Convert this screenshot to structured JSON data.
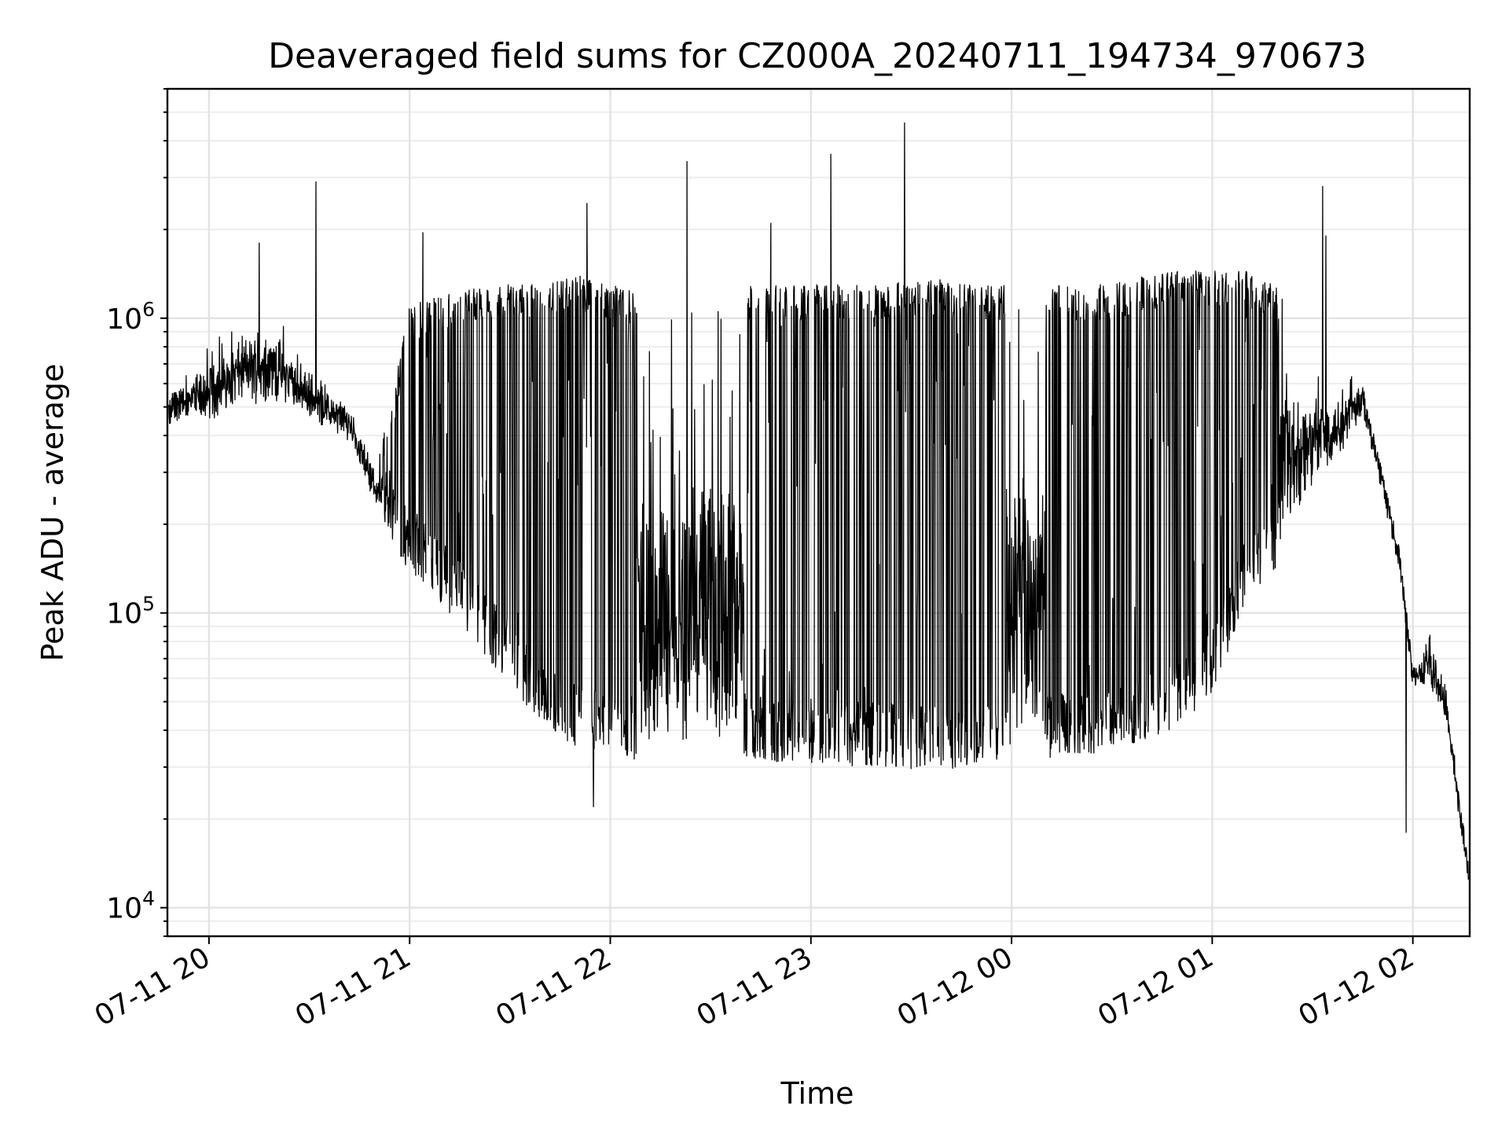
{
  "chart_data": {
    "type": "line",
    "title": "Deaveraged field sums for CZ000A_20240711_194734_970673",
    "xlabel": "Time",
    "ylabel": "Peak ADU - average",
    "y_scale": "log",
    "ylim": [
      8000,
      6000000
    ],
    "xlim": [
      "2024-07-11 19:47:34",
      "2024-07-12 02:17:00"
    ],
    "grid": true,
    "x_ticks": [
      "2024-07-11 20:00",
      "2024-07-11 21:00",
      "2024-07-11 22:00",
      "2024-07-11 23:00",
      "2024-07-12 00:00",
      "2024-07-12 01:00",
      "2024-07-12 02:00"
    ],
    "x_tick_labels": [
      "07-11 20",
      "07-11 21",
      "07-11 22",
      "07-11 23",
      "07-12 00",
      "07-12 01",
      "07-12 02"
    ],
    "y_ticks": [
      {
        "value": 10000,
        "base": "10",
        "exp": "4"
      },
      {
        "value": 100000,
        "base": "10",
        "exp": "5"
      },
      {
        "value": 1000000,
        "base": "10",
        "exp": "6"
      }
    ],
    "series": [
      {
        "color": "#000000",
        "x": [
          "2024-07-11 19:48",
          "2024-07-11 19:55",
          "2024-07-11 20:00",
          "2024-07-11 20:10",
          "2024-07-11 20:20",
          "2024-07-11 20:30",
          "2024-07-11 20:35",
          "2024-07-11 20:42",
          "2024-07-11 20:50",
          "2024-07-11 21:00",
          "2024-07-11 21:10",
          "2024-07-11 21:20",
          "2024-07-11 21:30",
          "2024-07-11 21:40",
          "2024-07-11 21:50",
          "2024-07-11 22:00",
          "2024-07-11 22:10",
          "2024-07-11 22:20",
          "2024-07-11 22:30",
          "2024-07-11 22:40",
          "2024-07-11 22:50",
          "2024-07-11 23:00",
          "2024-07-11 23:10",
          "2024-07-11 23:20",
          "2024-07-11 23:30",
          "2024-07-11 23:40",
          "2024-07-11 23:50",
          "2024-07-12 00:00",
          "2024-07-12 00:10",
          "2024-07-12 00:20",
          "2024-07-12 00:30",
          "2024-07-12 00:40",
          "2024-07-12 00:50",
          "2024-07-12 01:00",
          "2024-07-12 01:10",
          "2024-07-12 01:20",
          "2024-07-12 01:30",
          "2024-07-12 01:37",
          "2024-07-12 01:45",
          "2024-07-12 01:50",
          "2024-07-12 01:56",
          "2024-07-12 02:00",
          "2024-07-12 02:05",
          "2024-07-12 02:10",
          "2024-07-12 02:17"
        ],
        "base": [
          450000,
          500000,
          480000,
          560000,
          560000,
          500000,
          450000,
          420000,
          250000,
          170000,
          130000,
          95000,
          70000,
          50000,
          42000,
          40000,
          38000,
          38000,
          40000,
          40000,
          38000,
          38000,
          37000,
          37000,
          36000,
          36000,
          37000,
          38000,
          39000,
          40000,
          42000,
          45000,
          50000,
          65000,
          130000,
          180000,
          280000,
          350000,
          500000,
          300000,
          150000,
          60000,
          60000,
          45000,
          12000
        ],
        "peak": [
          600000,
          700000,
          800000,
          1100000,
          1100000,
          700000,
          600000,
          500000,
          300000,
          1100000,
          1200000,
          1300000,
          1300000,
          1300000,
          1400000,
          1300000,
          1200000,
          1100000,
          1300000,
          1300000,
          1300000,
          1300000,
          1300000,
          1300000,
          1350000,
          1350000,
          1300000,
          1300000,
          1300000,
          1300000,
          1300000,
          1400000,
          1450000,
          1450000,
          1450000,
          1300000,
          800000,
          700000,
          650000,
          300000,
          150000,
          60000,
          90000,
          55000,
          12000
        ],
        "burst_start": [
          "2024-07-11 20:52",
          "2024-07-11 22:40",
          "2024-07-12 00:10"
        ],
        "burst_end": [
          "2024-07-11 22:08",
          "2024-07-11 23:58",
          "2024-07-12 01:20"
        ],
        "spikes": [
          {
            "x": "2024-07-11 20:15",
            "y": 1800000
          },
          {
            "x": "2024-07-11 20:32",
            "y": 2900000
          },
          {
            "x": "2024-07-11 21:04",
            "y": 1950000
          },
          {
            "x": "2024-07-11 21:53",
            "y": 2450000
          },
          {
            "x": "2024-07-11 21:55",
            "y": 22000
          },
          {
            "x": "2024-07-11 22:23",
            "y": 3400000
          },
          {
            "x": "2024-07-11 22:48",
            "y": 2100000
          },
          {
            "x": "2024-07-11 23:06",
            "y": 3600000
          },
          {
            "x": "2024-07-11 23:28",
            "y": 4600000
          },
          {
            "x": "2024-07-12 01:33",
            "y": 2800000
          },
          {
            "x": "2024-07-12 01:34",
            "y": 1900000
          },
          {
            "x": "2024-07-12 01:58",
            "y": 18000
          }
        ]
      }
    ]
  }
}
